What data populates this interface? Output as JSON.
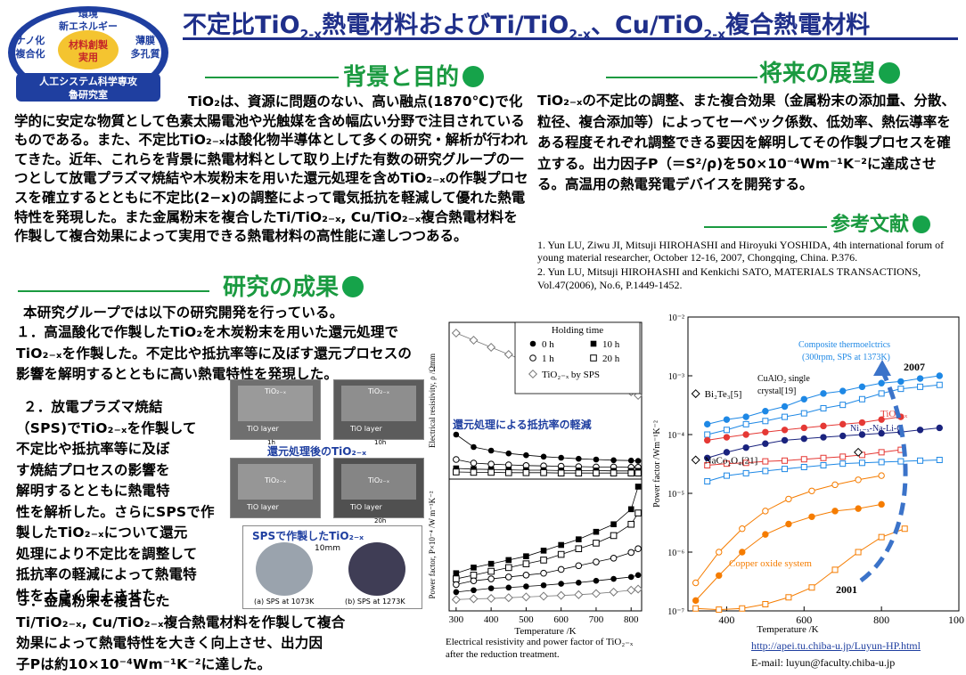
{
  "logo": {
    "top": "環境",
    "energy": "新エネルギー",
    "left1": "ナノ化",
    "left2": "複合化",
    "right1": "薄膜",
    "right2": "多孔質",
    "center1": "材料創製",
    "center2": "実用",
    "lab1": "人工システム科学専攻",
    "lab2": "魯研究室"
  },
  "title": {
    "p1": "不定比TiO",
    "s1": "2-x",
    "p2": "熱電材料およびTi/TiO",
    "s2": "2-x",
    "p3": "、Cu/TiO",
    "s3": "2-x",
    "p4": "複合熱電材料"
  },
  "sections": {
    "background": "背景と目的",
    "future": "将来の展望",
    "references": "参考文献",
    "results": "研究の成果"
  },
  "background_text": "TiO₂は、資源に問題のない、高い融点(1870℃)で化学的に安定な物質として色素太陽電池や光触媒を含め幅広い分野で注目されているものである。また、不定比TiO₂₋ₓは酸化物半導体として多くの研究・解析が行われてきた。近年、これらを背景に熱電材料として取り上げた有数の研究グループの一つとして放電プラズマ焼結や木炭粉末を用いた還元処理を含めTiO₂₋ₓの作製プロセスを確立するとともに不定比(2−x)の調整によって電気抵抗を軽減して優れた熱電特性を発現した。また金属粉末を複合したTi/TiO₂₋ₓ, Cu/TiO₂₋ₓ複合熱電材料を作製して複合効果によって実用できる熱電材料の高性能に達しつつある。",
  "future_text": "TiO₂₋ₓの不定比の調整、また複合効果（金属粉末の添加量、分散、粒径、複合添加等）によってセーベック係数、低効率、熱伝導率をある程度それぞれ調整できる要因を解明してその作製プロセスを確立する。出力因子P（＝S²/ρ)を50×10⁻⁴Wm⁻¹K⁻²に達成させる。高温用の熱電発電デバイスを開発する。",
  "references": [
    "1.  Yun LU, Ziwu JI, Mitsuji HIROHASHI and Hiroyuki YOSHIDA, 4th international forum of young material  researcher, October 12-16, 2007, Chongqing, China. P.376.",
    "2.  Yun LU, Mitsuji HIROHASHI and Kenkichi SATO, MATERIALS TRANSACTIONS, Vol.47(2006), No.6, P.1449-1452."
  ],
  "results": {
    "intro": "本研究グループでは以下の研究開発を行っている。",
    "item1": "１．高温酸化で作製したTiO₂を木炭粉末を用いた還元処理でTiO₂₋ₓを作製した。不定比や抵抗率等に及ぼす還元プロセスの影響を解明するとともに高い熱電特性を発現した。",
    "item2_l1": "２．放電プラズマ焼結",
    "item2_l2": "（SPS)でTiO₂₋ₓを作製して",
    "item2_l3": "不定比や抵抗率等に及ぼ",
    "item2_l4": "す焼結プロセスの影響を",
    "item2_l5": "解明するとともに熱電特",
    "item2_l6": "性を解析した。さらにSPSで作",
    "item2_l7": "製したTiO₂₋ₓについて還元",
    "item2_l8": "処理により不定比を調整して",
    "item2_l9": "抵抗率の軽減によって熱電特",
    "item2_l10": "性を大きく向上させた。",
    "item3_l1": "３．金属粉末を複合した",
    "item3_l2": "Ti/TiO₂₋ₓ, Cu/TiO₂₋ₓ複合熱電材料を作製して複合",
    "item3_l3": "効果によって熱電特性を大きく向上させ、出力因",
    "item3_l4": "子Pは約10×10⁻⁴Wm⁻¹K⁻²に達した。"
  },
  "photos": {
    "reduced_caption": "還元処理後のTiO₂₋ₓ",
    "tio_label": "TiO₂₋ₓ",
    "tio_layer": "TiO layer",
    "t1h": "1h",
    "t10h": "10h",
    "t20h": "20h",
    "sps_caption": "SPSで作製したTiO₂₋ₓ",
    "scale": "10mm",
    "a": "(a) SPS at 1073K",
    "b": "(b) SPS at 1273K"
  },
  "chart_left_caption": "Electrical resistivity and power factor of TiO₂₋ₓ after the reduction treatment.",
  "links": {
    "url": "http://apei.tu.chiba-u.jp/Luyun-HP.html",
    "email": "E-mail: luyun@faculty.chiba-u.jp"
  },
  "chart_data": [
    {
      "type": "line",
      "legend_title": "Holding time",
      "legend_position": "top-right",
      "annotation": "還元処理による抵抗率の軽減",
      "x": [
        300,
        350,
        400,
        450,
        500,
        550,
        600,
        650,
        700,
        750,
        800,
        820
      ],
      "xlabel": "Temperature  /K",
      "xticks": [
        300,
        400,
        500,
        600,
        700,
        800
      ],
      "panel_top": {
        "ylabel": "Electrical resistivity, ρ  /Ωmm",
        "series": [
          {
            "name": "0 h",
            "marker": "filled-circle",
            "values": [
              1.25,
              0.9,
              0.8,
              0.72,
              0.67,
              0.63,
              0.6,
              0.57,
              0.55,
              0.53,
              0.52,
              0.51
            ]
          },
          {
            "name": "1 h",
            "marker": "open-circle",
            "values": [
              0.55,
              0.45,
              0.42,
              0.4,
              0.38,
              0.37,
              0.36,
              0.35,
              0.34,
              0.34,
              0.33,
              0.33
            ]
          },
          {
            "name": "10 h",
            "marker": "filled-square",
            "values": [
              0.3,
              0.28,
              0.27,
              0.26,
              0.25,
              0.25,
              0.24,
              0.24,
              0.24,
              0.23,
              0.23,
              0.23
            ]
          },
          {
            "name": "20 h",
            "marker": "open-square",
            "values": [
              0.2,
              0.19,
              0.19,
              0.18,
              0.18,
              0.18,
              0.17,
              0.17,
              0.17,
              0.17,
              0.17,
              0.17
            ]
          },
          {
            "name": "TiO₂₋ₓ by SPS",
            "marker": "open-diamond",
            "values": [
              4.1,
              3.9,
              3.7,
              3.5,
              3.3,
              3.2,
              3.05,
              2.9,
              2.75,
              2.6,
              2.45,
              2.35
            ]
          }
        ]
      },
      "panel_bottom": {
        "ylabel": "Power factor, P×10⁻⁴ /W m⁻¹K⁻²",
        "series": [
          {
            "name": "0 h",
            "values": [
              0.5,
              0.55,
              0.6,
              0.62,
              0.65,
              0.68,
              0.72,
              0.75,
              0.8,
              0.85,
              0.9,
              0.95
            ]
          },
          {
            "name": "1 h",
            "values": [
              0.7,
              0.8,
              0.85,
              0.9,
              0.95,
              1.0,
              1.1,
              1.2,
              1.3,
              1.4,
              1.55,
              1.65
            ]
          },
          {
            "name": "10 h",
            "values": [
              1.0,
              1.15,
              1.25,
              1.35,
              1.45,
              1.6,
              1.75,
              1.9,
              2.1,
              2.3,
              2.7,
              3.3
            ]
          },
          {
            "name": "20 h",
            "values": [
              0.85,
              0.95,
              1.05,
              1.15,
              1.25,
              1.35,
              1.5,
              1.65,
              1.8,
              2.0,
              2.3,
              2.6
            ]
          },
          {
            "name": "TiO₂₋ₓ by SPS",
            "values": [
              0.3,
              0.32,
              0.33,
              0.35,
              0.37,
              0.39,
              0.41,
              0.43,
              0.46,
              0.5,
              0.55,
              0.58
            ]
          }
        ]
      }
    },
    {
      "type": "scatter",
      "scale": "log",
      "xlabel": "Temperature  /K",
      "ylabel": "Power factor  /Wm⁻¹K⁻²",
      "xlim": [
        300,
        1000
      ],
      "ylim": [
        "1e-7",
        "1e-2"
      ],
      "xticks": [
        400,
        600,
        800,
        1000
      ],
      "yticks": [
        "10⁻⁷",
        "10⁻⁶",
        "10⁻⁵",
        "10⁻⁴",
        "10⁻³",
        "10⁻²"
      ],
      "labels": {
        "bi2te3": "Bi₂Te₃[5]",
        "naco2o4": "NaCo₂O₄[21]",
        "cualo2": "CuAlO₂ single crystal[19]",
        "composite": "Composite thermoelctrics (300rpm, SPS at 1373K)",
        "tio2x": "TiO₂₋ₓ",
        "nia": "Ni₁₋ₓ-Na-Li-O",
        "copper": "Copper oxide system",
        "y2007": "2007",
        "y2001": "2001"
      },
      "points": {
        "bi2te3": [
          320,
          0.00035
        ],
        "naco2o4": [
          320,
          0.0003
        ],
        "cualo2": [
          740,
          5e-05
        ]
      },
      "series": [
        {
          "name": "composite-1",
          "color": "#1e88e5",
          "x": [
            350,
            400,
            450,
            500,
            550,
            600,
            650,
            700,
            750,
            800,
            850,
            900,
            950
          ],
          "y": [
            0.00015,
            0.00018,
            0.0002,
            0.00025,
            0.0003,
            0.0004,
            0.0005,
            0.00055,
            0.00065,
            0.00075,
            0.0008,
            0.0009,
            0.001
          ]
        },
        {
          "name": "composite-2",
          "color": "#1e88e5",
          "x": [
            350,
            400,
            450,
            500,
            550,
            600,
            650,
            700,
            750,
            800,
            850,
            900,
            950
          ],
          "y": [
            0.0001,
            0.00012,
            0.00015,
            0.00017,
            0.0002,
            0.00023,
            0.00028,
            0.00032,
            0.0004,
            0.0005,
            0.0006,
            0.00065,
            0.0007
          ]
        },
        {
          "name": "tio2x",
          "color": "#e53935",
          "x": [
            350,
            400,
            450,
            500,
            550,
            600,
            650,
            700,
            750,
            800,
            850
          ],
          "y": [
            8e-05,
            9e-05,
            0.0001,
            0.00011,
            0.00012,
            0.00013,
            0.00014,
            0.00015,
            0.00016,
            0.00018,
            0.0002
          ]
        },
        {
          "name": "tio2x-2",
          "color": "#e53935",
          "x": [
            350,
            400,
            450,
            500,
            550,
            600,
            650,
            700,
            750,
            800,
            850
          ],
          "y": [
            3e-05,
            3.2e-05,
            3.3e-05,
            3.5e-05,
            3.6e-05,
            3.8e-05,
            4e-05,
            4.2e-05,
            4.5e-05,
            5e-05,
            5.5e-05
          ]
        },
        {
          "name": "nia",
          "color": "#1a237e",
          "x": [
            350,
            400,
            450,
            500,
            550,
            600,
            650,
            700,
            750,
            800,
            850,
            900,
            950
          ],
          "y": [
            4e-05,
            5e-05,
            6e-05,
            7e-05,
            8e-05,
            8.5e-05,
            9e-05,
            9.5e-05,
            0.0001,
            0.000105,
            0.00011,
            0.00012,
            0.00013
          ]
        },
        {
          "name": "blue-open",
          "color": "#1e88e5",
          "x": [
            350,
            400,
            450,
            500,
            550,
            600,
            650,
            700,
            750,
            800,
            850,
            900,
            950
          ],
          "y": [
            1.6e-05,
            2e-05,
            2.2e-05,
            2.4e-05,
            2.6e-05,
            2.8e-05,
            3e-05,
            3.2e-05,
            3.3e-05,
            3.4e-05,
            3.5e-05,
            3.6e-05,
            3.7e-05
          ]
        },
        {
          "name": "copper-1",
          "color": "#f57c00",
          "x": [
            320,
            380,
            440,
            500,
            560,
            620,
            680,
            740,
            800
          ],
          "y": [
            1.5e-07,
            4e-07,
            1e-06,
            2e-06,
            3e-06,
            4e-06,
            5e-06,
            5.5e-06,
            6.5e-06
          ]
        },
        {
          "name": "copper-2",
          "color": "#f57c00",
          "x": [
            320,
            380,
            440,
            500,
            560,
            620,
            680,
            740,
            800
          ],
          "y": [
            3e-07,
            1e-06,
            2.5e-06,
            5e-06,
            8e-06,
            1.1e-05,
            1.4e-05,
            1.7e-05,
            2e-05
          ]
        },
        {
          "name": "copper-3",
          "color": "#f57c00",
          "x": [
            320,
            380,
            440,
            500,
            560,
            620,
            680,
            740,
            800,
            860
          ],
          "y": [
            1.1e-07,
            1.05e-07,
            1.1e-07,
            1.3e-07,
            1.7e-07,
            2.5e-07,
            5e-07,
            1e-06,
            1.8e-06,
            2.5e-06
          ]
        }
      ]
    }
  ]
}
